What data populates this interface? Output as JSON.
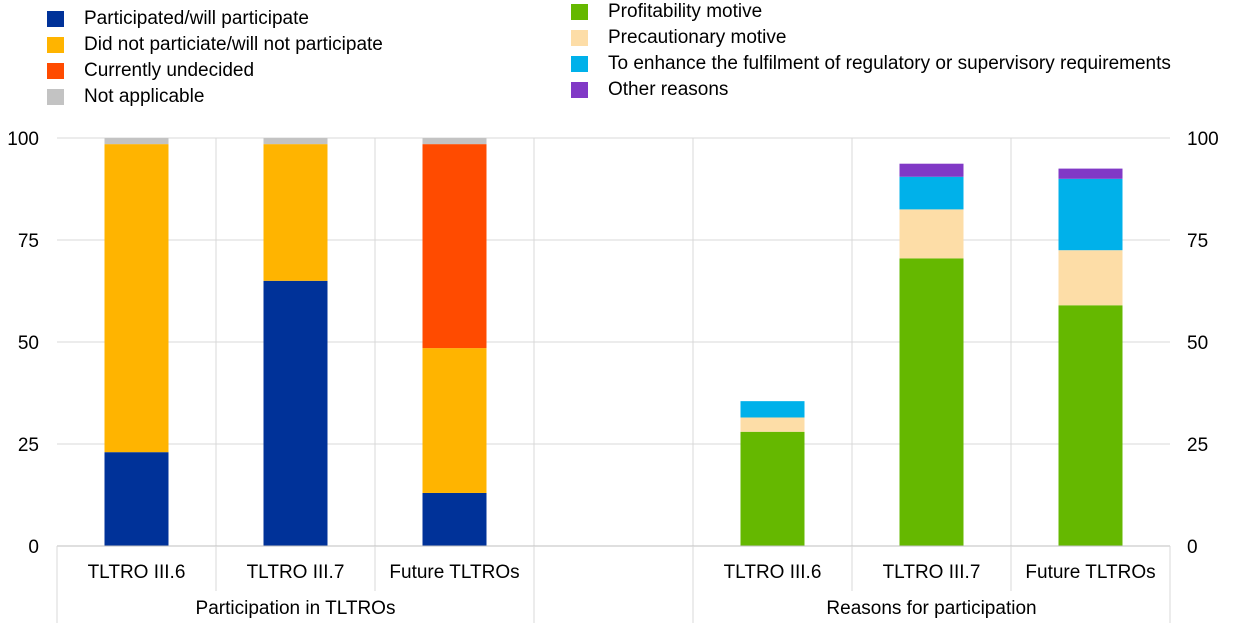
{
  "legend_left": [
    {
      "label": "Participated/will participate",
      "color": "#003299"
    },
    {
      "label": "Did not particiate/will not participate",
      "color": "#FFB400"
    },
    {
      "label": "Currently undecided",
      "color": "#FF4B00"
    },
    {
      "label": "Not applicable",
      "color": "#C3C3C3"
    }
  ],
  "legend_right": [
    {
      "label": "Profitability motive",
      "color": "#65B800"
    },
    {
      "label": "Precautionary motive",
      "color": "#FDDDA7"
    },
    {
      "label": "To enhance the fulfilment of regulatory or supervisory requirements",
      "color": "#00B1EA"
    },
    {
      "label": "Other reasons",
      "color": "#8139C6"
    }
  ],
  "chart_data": {
    "type": "bar",
    "stacked": true,
    "ylim": [
      0,
      100
    ],
    "yticks": [
      0,
      25,
      50,
      75,
      100
    ],
    "secondary_yaxis": true,
    "grid": true,
    "legend_position": "top",
    "categories": [
      "TLTRO III.6",
      "TLTRO III.7",
      "Future TLTROs",
      "",
      "TLTRO III.6",
      "TLTRO III.7",
      "Future TLTROs"
    ],
    "groups": [
      {
        "label": "Participation in TLTROs",
        "categories": [
          0,
          1,
          2
        ]
      },
      {
        "label": "Reasons for participation",
        "categories": [
          4,
          5,
          6
        ]
      }
    ],
    "series": [
      {
        "name": "Participated/will participate",
        "color": "#003299",
        "values": [
          23,
          65,
          13,
          null,
          null,
          null,
          null
        ]
      },
      {
        "name": "Did not particiate/will not participate",
        "color": "#FFB400",
        "values": [
          75.5,
          33.5,
          35.5,
          null,
          null,
          null,
          null
        ]
      },
      {
        "name": "Currently undecided",
        "color": "#FF4B00",
        "values": [
          0,
          0,
          50,
          null,
          null,
          null,
          null
        ]
      },
      {
        "name": "Not applicable",
        "color": "#C3C3C3",
        "values": [
          1.5,
          1.5,
          1.5,
          null,
          null,
          null,
          null
        ]
      },
      {
        "name": "Profitability motive",
        "color": "#65B800",
        "values": [
          null,
          null,
          null,
          null,
          28,
          70.5,
          59
        ]
      },
      {
        "name": "Precautionary motive",
        "color": "#FDDDA7",
        "values": [
          null,
          null,
          null,
          null,
          3.5,
          12,
          13.5
        ]
      },
      {
        "name": "To enhance the fulfilment of regulatory or supervisory requirements",
        "color": "#00B1EA",
        "values": [
          null,
          null,
          null,
          null,
          4,
          8,
          17.5
        ]
      },
      {
        "name": "Other reasons",
        "color": "#8139C6",
        "values": [
          null,
          null,
          null,
          null,
          0,
          3.2,
          2.5
        ]
      }
    ]
  }
}
